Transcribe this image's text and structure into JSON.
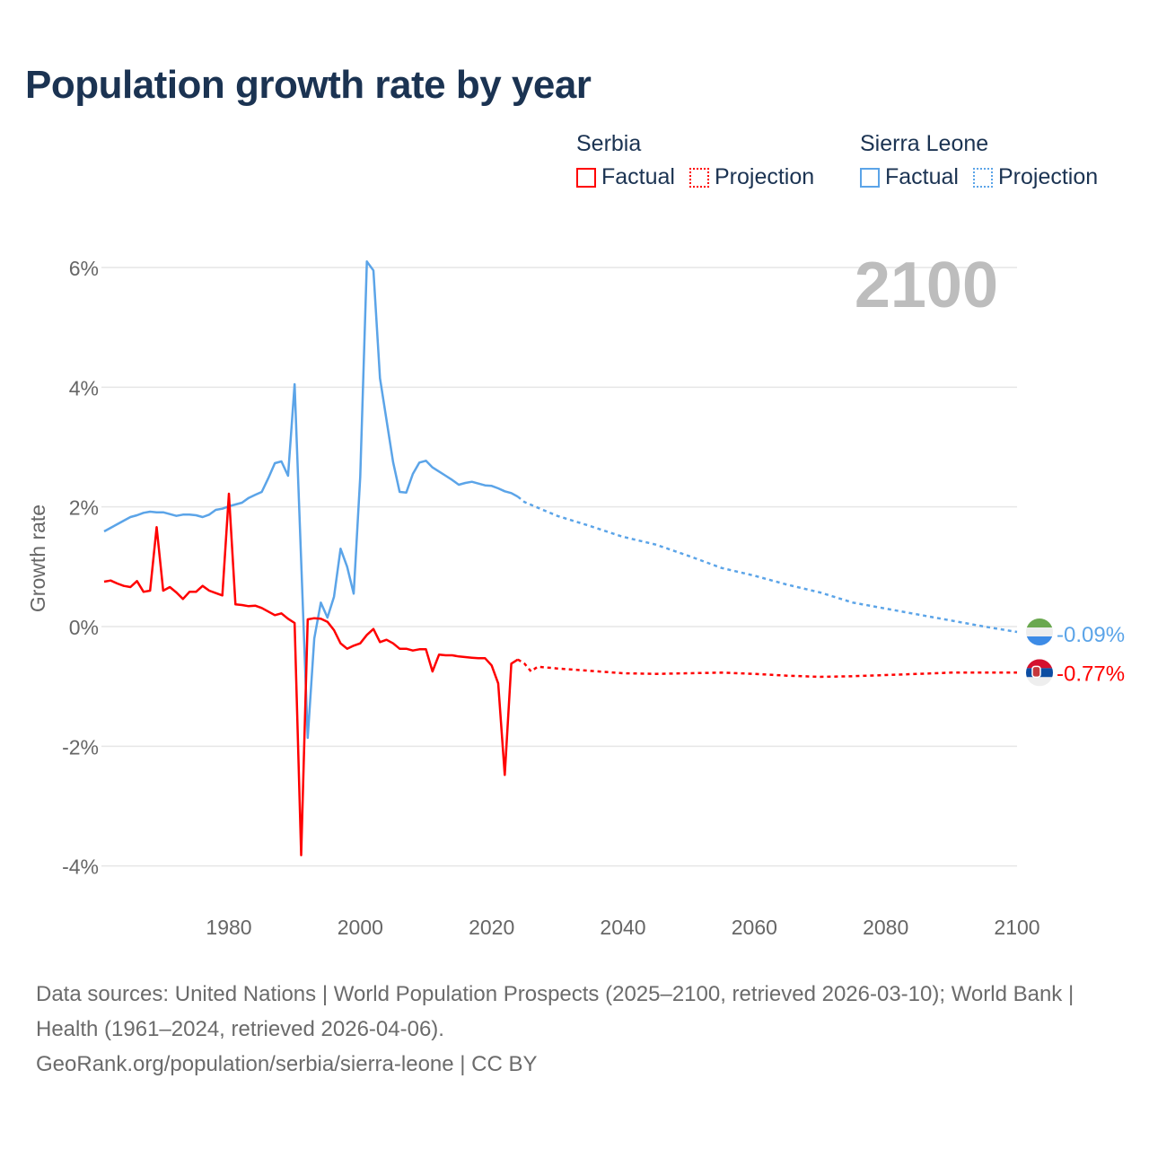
{
  "title": "Population growth rate by year",
  "legend": {
    "serbia": {
      "name": "Serbia",
      "factual": "Factual",
      "projection": "Projection",
      "color": "#ff0000"
    },
    "sierra_leone": {
      "name": "Sierra Leone",
      "factual": "Factual",
      "projection": "Projection",
      "color": "#5ba4e8"
    }
  },
  "year_label": "2100",
  "end_labels": {
    "sierra_leone": "-0.09%",
    "serbia": "-0.77%"
  },
  "footer": {
    "sources": "Data sources: United Nations | World Population Prospects (2025–2100, retrieved 2026-03-10); World Bank | Health (1961–2024, retrieved 2026-04-06).",
    "credit": "GeoRank.org/population/serbia/sierra-leone | CC BY"
  },
  "chart_data": {
    "type": "line",
    "title": "Population growth rate by year",
    "xlabel": "",
    "ylabel": "Growth rate",
    "xlim": [
      1961,
      2100
    ],
    "ylim": [
      -4.6,
      6.4
    ],
    "x_ticks": [
      1980,
      2000,
      2020,
      2040,
      2060,
      2080,
      2100
    ],
    "y_ticks": [
      6,
      4,
      2,
      0,
      -2,
      -4
    ],
    "y_tick_labels": [
      "6%",
      "4%",
      "2%",
      "0%",
      "-2%",
      "-4%"
    ],
    "grid": true,
    "legend_position": "top-right",
    "series": [
      {
        "name": "Sierra Leone",
        "factual": {
          "start_year": 1961,
          "values": [
            1.59,
            1.65,
            1.71,
            1.77,
            1.83,
            1.86,
            1.9,
            1.92,
            1.91,
            1.91,
            1.88,
            1.85,
            1.87,
            1.87,
            1.86,
            1.83,
            1.87,
            1.95,
            1.97,
            2.01,
            2.04,
            2.07,
            2.15,
            2.2,
            2.25,
            2.48,
            2.73,
            2.76,
            2.52,
            4.05,
            1.1,
            -1.86,
            -0.2,
            0.4,
            0.15,
            0.5,
            1.3,
            1.0,
            0.55,
            2.5,
            6.1,
            5.95,
            4.15,
            3.45,
            2.75,
            2.25,
            2.24,
            2.55,
            2.74,
            2.77,
            2.66,
            2.59,
            2.52,
            2.45,
            2.37,
            2.4,
            2.42,
            2.39,
            2.36,
            2.35,
            2.31,
            2.26,
            2.23,
            2.17
          ]
        },
        "projection": {
          "x": [
            2024,
            2025,
            2030,
            2035,
            2040,
            2045,
            2050,
            2055,
            2060,
            2065,
            2070,
            2075,
            2080,
            2085,
            2090,
            2095,
            2100
          ],
          "values": [
            2.17,
            2.08,
            1.85,
            1.68,
            1.5,
            1.37,
            1.18,
            0.98,
            0.85,
            0.7,
            0.57,
            0.4,
            0.3,
            0.2,
            0.1,
            0.0,
            -0.09
          ]
        }
      },
      {
        "name": "Serbia",
        "factual": {
          "start_year": 1961,
          "values": [
            0.75,
            0.77,
            0.72,
            0.68,
            0.66,
            0.76,
            0.58,
            0.6,
            1.66,
            0.6,
            0.66,
            0.57,
            0.46,
            0.58,
            0.58,
            0.68,
            0.6,
            0.56,
            0.52,
            2.22,
            0.37,
            0.36,
            0.34,
            0.35,
            0.31,
            0.25,
            0.19,
            0.22,
            0.13,
            0.06,
            -3.82,
            0.12,
            0.14,
            0.13,
            0.08,
            -0.06,
            -0.28,
            -0.37,
            -0.32,
            -0.28,
            -0.14,
            -0.04,
            -0.26,
            -0.22,
            -0.28,
            -0.37,
            -0.37,
            -0.4,
            -0.38,
            -0.38,
            -0.75,
            -0.47,
            -0.48,
            -0.48,
            -0.5,
            -0.51,
            -0.52,
            -0.53,
            -0.53,
            -0.65,
            -0.95,
            -2.48,
            -0.62,
            -0.55
          ]
        },
        "projection": {
          "x": [
            2024,
            2025,
            2026,
            2027,
            2030,
            2035,
            2040,
            2045,
            2050,
            2055,
            2060,
            2065,
            2070,
            2075,
            2080,
            2085,
            2090,
            2095,
            2100
          ],
          "values": [
            -0.55,
            -0.62,
            -0.75,
            -0.67,
            -0.7,
            -0.74,
            -0.78,
            -0.79,
            -0.78,
            -0.77,
            -0.79,
            -0.82,
            -0.84,
            -0.83,
            -0.81,
            -0.79,
            -0.77,
            -0.77,
            -0.77
          ]
        }
      }
    ]
  }
}
